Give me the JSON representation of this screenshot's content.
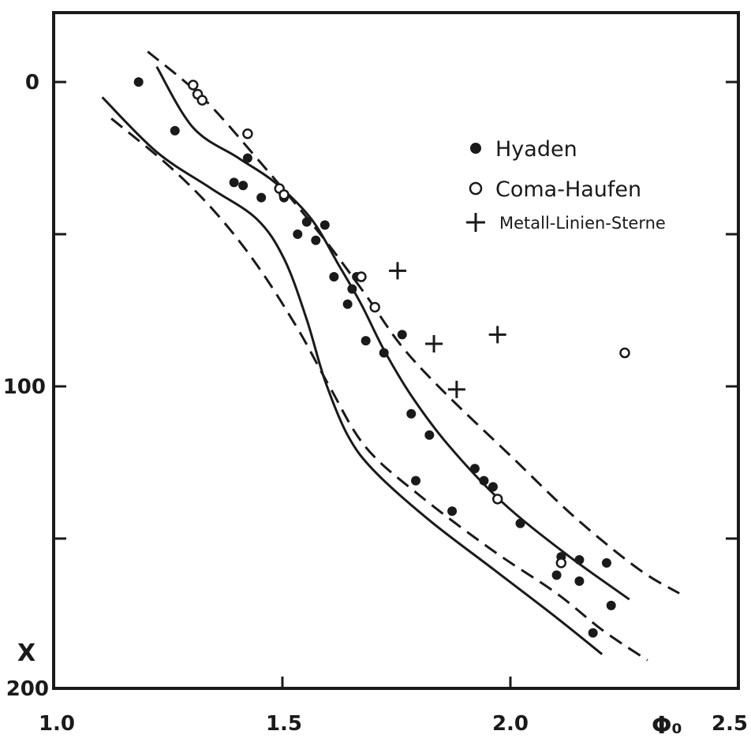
{
  "chart_data": {
    "type": "scatter",
    "title": "",
    "xlabel": "Φ₀",
    "ylabel": "X",
    "xlim": [
      1.0,
      2.5
    ],
    "ylim": [
      0,
      200
    ],
    "y_inverted": true,
    "x_ticks": [
      "1.0",
      "1.5",
      "2.0",
      "2.5"
    ],
    "y_ticks": [
      "0",
      "100",
      "200"
    ],
    "legend_position": "top-right",
    "legend": [
      {
        "marker": "filled-circle",
        "label": "Hyaden"
      },
      {
        "marker": "open-circle",
        "label": "Coma-Haufen"
      },
      {
        "marker": "plus",
        "label": "Metall-Linien-Sterne"
      }
    ],
    "series": [
      {
        "name": "Hyaden",
        "marker": "filled-circle",
        "points": [
          [
            1.18,
            0
          ],
          [
            1.26,
            16
          ],
          [
            1.42,
            25
          ],
          [
            1.39,
            33
          ],
          [
            1.41,
            34
          ],
          [
            1.45,
            38
          ],
          [
            1.5,
            38
          ],
          [
            1.53,
            50
          ],
          [
            1.55,
            46
          ],
          [
            1.57,
            52
          ],
          [
            1.59,
            47
          ],
          [
            1.61,
            64
          ],
          [
            1.64,
            73
          ],
          [
            1.65,
            68
          ],
          [
            1.66,
            64
          ],
          [
            1.68,
            85
          ],
          [
            1.72,
            89
          ],
          [
            1.76,
            83
          ],
          [
            1.78,
            109
          ],
          [
            1.82,
            116
          ],
          [
            1.79,
            131
          ],
          [
            1.87,
            141
          ],
          [
            1.92,
            127
          ],
          [
            1.94,
            131
          ],
          [
            1.96,
            133
          ],
          [
            2.02,
            145
          ],
          [
            2.1,
            162
          ],
          [
            2.11,
            156
          ],
          [
            2.15,
            157
          ],
          [
            2.15,
            164
          ],
          [
            2.18,
            181
          ],
          [
            2.21,
            158
          ],
          [
            2.22,
            172
          ]
        ]
      },
      {
        "name": "Coma-Haufen",
        "marker": "open-circle",
        "points": [
          [
            1.3,
            1
          ],
          [
            1.31,
            4
          ],
          [
            1.32,
            6
          ],
          [
            1.42,
            17
          ],
          [
            1.49,
            35
          ],
          [
            1.5,
            37
          ],
          [
            1.67,
            64
          ],
          [
            1.7,
            74
          ],
          [
            1.97,
            137
          ],
          [
            2.11,
            158
          ],
          [
            2.25,
            89
          ]
        ]
      },
      {
        "name": "Metall-Linien-Sterne",
        "marker": "plus",
        "points": [
          [
            1.75,
            62
          ],
          [
            1.83,
            86
          ],
          [
            1.97,
            83
          ],
          [
            1.88,
            101
          ]
        ]
      }
    ],
    "curves": [
      {
        "style": "solid",
        "points": [
          [
            1.22,
            -5
          ],
          [
            1.3,
            15
          ],
          [
            1.4,
            25
          ],
          [
            1.48,
            33
          ],
          [
            1.56,
            45
          ],
          [
            1.62,
            60
          ],
          [
            1.67,
            73
          ],
          [
            1.72,
            88
          ],
          [
            1.78,
            103
          ],
          [
            1.86,
            119
          ],
          [
            1.98,
            138
          ],
          [
            2.12,
            155
          ],
          [
            2.26,
            170
          ]
        ]
      },
      {
        "style": "solid",
        "points": [
          [
            1.1,
            5
          ],
          [
            1.22,
            23
          ],
          [
            1.34,
            35
          ],
          [
            1.44,
            45
          ],
          [
            1.5,
            58
          ],
          [
            1.55,
            78
          ],
          [
            1.59,
            98
          ],
          [
            1.64,
            116
          ],
          [
            1.7,
            128
          ],
          [
            1.82,
            144
          ],
          [
            1.96,
            160
          ],
          [
            2.1,
            176
          ],
          [
            2.2,
            188
          ]
        ]
      },
      {
        "style": "dashed",
        "points": [
          [
            1.2,
            -10
          ],
          [
            1.32,
            5
          ],
          [
            1.44,
            25
          ],
          [
            1.58,
            50
          ],
          [
            1.68,
            70
          ],
          [
            1.76,
            87
          ],
          [
            1.86,
            103
          ],
          [
            2.0,
            123
          ],
          [
            2.14,
            143
          ],
          [
            2.28,
            160
          ],
          [
            2.37,
            168
          ]
        ]
      },
      {
        "style": "dashed",
        "points": [
          [
            1.12,
            12
          ],
          [
            1.25,
            28
          ],
          [
            1.35,
            43
          ],
          [
            1.44,
            60
          ],
          [
            1.53,
            81
          ],
          [
            1.6,
            100
          ],
          [
            1.68,
            120
          ],
          [
            1.8,
            136
          ],
          [
            1.96,
            154
          ],
          [
            2.1,
            168
          ],
          [
            2.2,
            180
          ],
          [
            2.3,
            190
          ]
        ]
      }
    ]
  }
}
